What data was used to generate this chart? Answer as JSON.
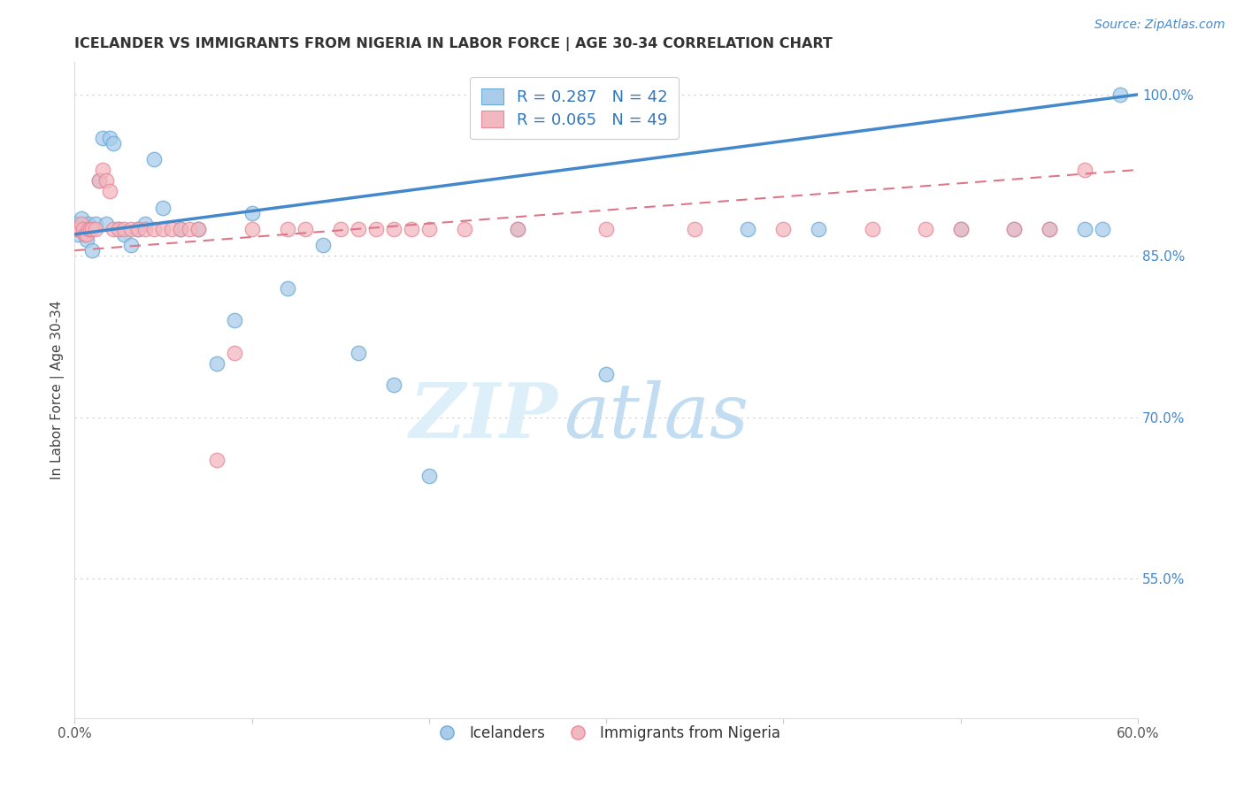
{
  "title": "ICELANDER VS IMMIGRANTS FROM NIGERIA IN LABOR FORCE | AGE 30-34 CORRELATION CHART",
  "source": "Source: ZipAtlas.com",
  "ylabel": "In Labor Force | Age 30-34",
  "xlim": [
    0.0,
    0.6
  ],
  "ylim": [
    0.42,
    1.03
  ],
  "xticks": [
    0.0,
    0.1,
    0.2,
    0.3,
    0.4,
    0.5,
    0.6
  ],
  "xticklabels": [
    "0.0%",
    "",
    "",
    "",
    "",
    "",
    "60.0%"
  ],
  "yticks_right": [
    0.55,
    0.7,
    0.85,
    1.0
  ],
  "ytick_labels_right": [
    "55.0%",
    "70.0%",
    "85.0%",
    "100.0%"
  ],
  "legend_blue_text": "R = 0.287   N = 42",
  "legend_pink_text": "R = 0.065   N = 49",
  "legend_label_blue": "Icelanders",
  "legend_label_pink": "Immigrants from Nigeria",
  "blue_scatter_color": "#A8CCEA",
  "pink_scatter_color": "#F2B8C0",
  "blue_edge_color": "#6AAAD4",
  "pink_edge_color": "#E88898",
  "trend_blue": "#4488CC",
  "trend_pink": "#DD7788",
  "watermark_color": "#D8EDF8",
  "blue_x": [
    0.001,
    0.002,
    0.003,
    0.004,
    0.005,
    0.006,
    0.007,
    0.008,
    0.01,
    0.012,
    0.014,
    0.016,
    0.018,
    0.02,
    0.022,
    0.025,
    0.028,
    0.032,
    0.036,
    0.04,
    0.045,
    0.05,
    0.06,
    0.07,
    0.08,
    0.09,
    0.1,
    0.12,
    0.14,
    0.16,
    0.18,
    0.2,
    0.25,
    0.3,
    0.38,
    0.42,
    0.5,
    0.53,
    0.55,
    0.57,
    0.58,
    0.59
  ],
  "blue_y": [
    0.88,
    0.87,
    0.875,
    0.885,
    0.875,
    0.87,
    0.865,
    0.88,
    0.855,
    0.88,
    0.92,
    0.96,
    0.88,
    0.96,
    0.955,
    0.875,
    0.87,
    0.86,
    0.875,
    0.88,
    0.94,
    0.895,
    0.875,
    0.875,
    0.75,
    0.79,
    0.89,
    0.82,
    0.86,
    0.76,
    0.73,
    0.645,
    0.875,
    0.74,
    0.875,
    0.875,
    0.875,
    0.875,
    0.875,
    0.875,
    0.875,
    1.0
  ],
  "pink_x": [
    0.001,
    0.002,
    0.003,
    0.004,
    0.005,
    0.006,
    0.007,
    0.008,
    0.009,
    0.01,
    0.012,
    0.014,
    0.016,
    0.018,
    0.02,
    0.022,
    0.025,
    0.028,
    0.032,
    0.036,
    0.04,
    0.045,
    0.05,
    0.055,
    0.06,
    0.065,
    0.07,
    0.08,
    0.09,
    0.1,
    0.12,
    0.15,
    0.17,
    0.19,
    0.22,
    0.13,
    0.16,
    0.18,
    0.2,
    0.25,
    0.3,
    0.35,
    0.4,
    0.45,
    0.48,
    0.5,
    0.53,
    0.55,
    0.57
  ],
  "pink_y": [
    0.875,
    0.875,
    0.875,
    0.88,
    0.875,
    0.87,
    0.87,
    0.875,
    0.875,
    0.875,
    0.875,
    0.92,
    0.93,
    0.92,
    0.91,
    0.875,
    0.875,
    0.875,
    0.875,
    0.875,
    0.875,
    0.875,
    0.875,
    0.875,
    0.875,
    0.875,
    0.875,
    0.66,
    0.76,
    0.875,
    0.875,
    0.875,
    0.875,
    0.875,
    0.875,
    0.875,
    0.875,
    0.875,
    0.875,
    0.875,
    0.875,
    0.875,
    0.875,
    0.875,
    0.875,
    0.875,
    0.875,
    0.875,
    0.93
  ],
  "blue_trend_x0": 0.0,
  "blue_trend_y0": 0.87,
  "blue_trend_x1": 0.6,
  "blue_trend_y1": 1.0,
  "pink_trend_x0": 0.0,
  "pink_trend_y0": 0.855,
  "pink_trend_x1": 0.6,
  "pink_trend_y1": 0.93
}
